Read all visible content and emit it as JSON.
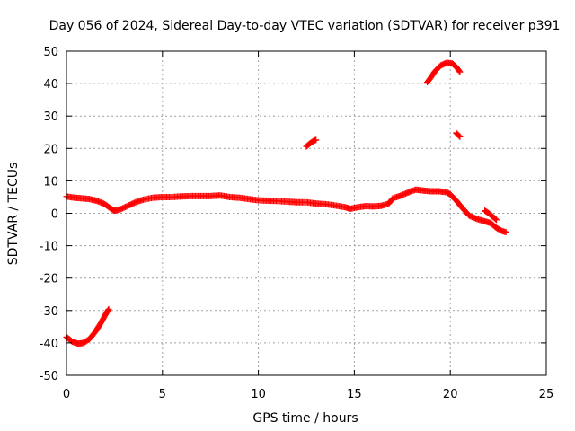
{
  "chart_data": {
    "type": "scatter",
    "title": "Day 056 of 2024, Sidereal Day-to-day VTEC variation (SDTVAR) for receiver p391",
    "xlabel": "GPS time / hours",
    "ylabel": "SDTVAR / TECUs",
    "xlim": [
      0,
      25
    ],
    "ylim": [
      -50,
      50
    ],
    "xticks": [
      "0",
      "5",
      "10",
      "15",
      "20",
      "25"
    ],
    "yticks": [
      "50",
      "40",
      "30",
      "20",
      "10",
      "0",
      "-10",
      "-20",
      "-30",
      "-40",
      "-50"
    ],
    "grid": true,
    "marker": "plus",
    "series": [
      {
        "name": "SDTVAR",
        "color": "#ff0000",
        "segments": [
          [
            [
              0.0,
              5.2
            ],
            [
              0.4,
              4.8
            ],
            [
              0.8,
              4.6
            ],
            [
              1.2,
              4.4
            ],
            [
              1.6,
              3.8
            ],
            [
              2.0,
              2.8
            ],
            [
              2.3,
              1.5
            ],
            [
              2.5,
              0.8
            ],
            [
              2.8,
              1.2
            ],
            [
              3.2,
              2.3
            ],
            [
              3.6,
              3.4
            ],
            [
              4.0,
              4.2
            ],
            [
              4.5,
              4.8
            ],
            [
              5.0,
              5.0
            ],
            [
              5.5,
              5.0
            ],
            [
              6.0,
              5.2
            ],
            [
              6.5,
              5.3
            ],
            [
              7.0,
              5.3
            ],
            [
              7.5,
              5.3
            ],
            [
              8.0,
              5.5
            ],
            [
              8.5,
              5.0
            ],
            [
              9.0,
              4.8
            ],
            [
              9.5,
              4.4
            ],
            [
              10.0,
              4.0
            ],
            [
              10.5,
              3.9
            ],
            [
              11.0,
              3.8
            ],
            [
              11.5,
              3.6
            ],
            [
              12.0,
              3.4
            ],
            [
              12.5,
              3.4
            ],
            [
              13.0,
              3.0
            ],
            [
              13.5,
              2.8
            ],
            [
              14.0,
              2.4
            ],
            [
              14.5,
              1.9
            ],
            [
              14.8,
              1.4
            ],
            [
              15.2,
              1.9
            ],
            [
              15.6,
              2.2
            ],
            [
              16.0,
              2.1
            ],
            [
              16.4,
              2.3
            ],
            [
              16.8,
              3.0
            ],
            [
              17.0,
              4.6
            ],
            [
              17.4,
              5.4
            ],
            [
              17.8,
              6.4
            ],
            [
              18.2,
              7.3
            ],
            [
              18.6,
              7.0
            ],
            [
              19.0,
              6.8
            ],
            [
              19.4,
              6.8
            ],
            [
              19.8,
              6.5
            ],
            [
              20.0,
              5.8
            ],
            [
              20.3,
              4.0
            ],
            [
              20.6,
              1.8
            ],
            [
              21.0,
              -0.8
            ],
            [
              21.4,
              -1.8
            ],
            [
              21.8,
              -2.5
            ],
            [
              22.1,
              -3.0
            ],
            [
              22.4,
              -4.5
            ],
            [
              22.7,
              -5.5
            ],
            [
              22.9,
              -5.8
            ]
          ],
          [
            [
              0.0,
              -38.2
            ],
            [
              0.3,
              -39.6
            ],
            [
              0.6,
              -40.2
            ],
            [
              0.9,
              -40.0
            ],
            [
              1.2,
              -38.8
            ],
            [
              1.5,
              -36.6
            ],
            [
              1.8,
              -33.8
            ],
            [
              2.0,
              -31.6
            ],
            [
              2.2,
              -29.6
            ]
          ],
          [
            [
              12.5,
              20.6
            ],
            [
              12.7,
              21.6
            ],
            [
              12.9,
              22.4
            ],
            [
              13.0,
              22.6
            ]
          ],
          [
            [
              18.8,
              40.4
            ],
            [
              19.0,
              42.0
            ],
            [
              19.2,
              43.8
            ],
            [
              19.5,
              45.6
            ],
            [
              19.8,
              46.4
            ],
            [
              20.1,
              46.2
            ],
            [
              20.3,
              45.2
            ],
            [
              20.5,
              43.6
            ]
          ],
          [
            [
              20.3,
              24.8
            ],
            [
              20.4,
              24.2
            ],
            [
              20.5,
              23.6
            ]
          ],
          [
            [
              21.8,
              0.8
            ],
            [
              22.0,
              0.0
            ],
            [
              22.2,
              -1.0
            ],
            [
              22.4,
              -2.0
            ]
          ]
        ]
      }
    ]
  }
}
